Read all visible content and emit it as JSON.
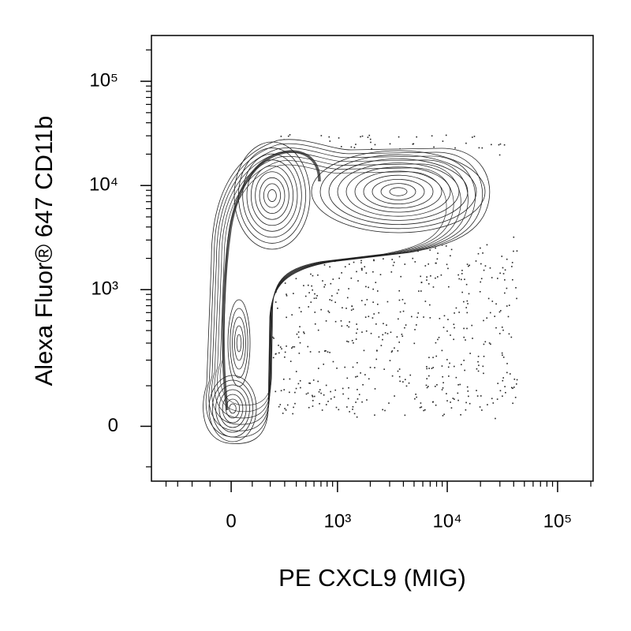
{
  "chart_data": {
    "type": "contour",
    "xlabel": "PE CXCL9 (MIG)",
    "ylabel": "Alexa Fluor® 647  CD11b",
    "scale": "biexponential",
    "xlim": [
      -560,
      210000
    ],
    "ylim": [
      -150,
      275000
    ],
    "xticks": [
      0,
      {
        "value": 1000,
        "label": "10³"
      },
      {
        "value": 10000,
        "label": "10⁴"
      },
      {
        "value": 100000,
        "label": "10⁵"
      }
    ],
    "yticks": [
      0,
      {
        "value": 1000,
        "label": "10³"
      },
      {
        "value": 10000,
        "label": "10⁴"
      },
      {
        "value": 100000,
        "label": "10⁵"
      }
    ],
    "xminorticks": [
      -400,
      -300,
      -200,
      -100,
      100,
      200,
      300,
      400,
      500,
      600,
      700,
      800,
      900,
      2000,
      3000,
      4000,
      5000,
      6000,
      7000,
      8000,
      9000,
      20000,
      30000,
      40000,
      50000,
      60000,
      70000,
      80000,
      90000,
      200000
    ],
    "yminorticks": [
      -100,
      100,
      200,
      300,
      400,
      500,
      600,
      700,
      800,
      900,
      2000,
      3000,
      4000,
      5000,
      6000,
      7000,
      8000,
      9000,
      20000,
      30000,
      40000,
      50000,
      60000,
      70000,
      80000,
      90000,
      200000
    ],
    "color": "#222222"
  }
}
